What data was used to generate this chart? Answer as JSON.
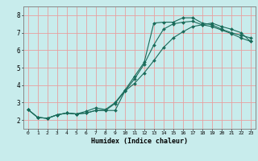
{
  "title": "",
  "xlabel": "Humidex (Indice chaleur)",
  "ylabel": "",
  "bg_color": "#c8ecec",
  "line_color": "#1a6b5a",
  "grid_color": "#e8a0a0",
  "xlim": [
    -0.5,
    23.5
  ],
  "ylim": [
    1.5,
    8.5
  ],
  "xticks": [
    0,
    1,
    2,
    3,
    4,
    5,
    6,
    7,
    8,
    9,
    10,
    11,
    12,
    13,
    14,
    15,
    16,
    17,
    18,
    19,
    20,
    21,
    22,
    23
  ],
  "yticks": [
    2,
    3,
    4,
    5,
    6,
    7,
    8
  ],
  "curve1_x": [
    0,
    1,
    2,
    3,
    4,
    5,
    6,
    7,
    8,
    9,
    10,
    11,
    12,
    13,
    14,
    15,
    16,
    17,
    18,
    19,
    20,
    21,
    22,
    23
  ],
  "curve1_y": [
    2.6,
    2.15,
    2.1,
    2.3,
    2.4,
    2.35,
    2.5,
    2.7,
    2.6,
    3.0,
    3.7,
    4.5,
    5.3,
    7.55,
    7.6,
    7.6,
    7.85,
    7.85,
    7.55,
    7.45,
    7.2,
    7.0,
    6.85,
    6.7
  ],
  "curve2_x": [
    0,
    1,
    2,
    3,
    4,
    5,
    6,
    7,
    8,
    9,
    10,
    11,
    12,
    13,
    14,
    15,
    16,
    17,
    18,
    19,
    20,
    21,
    22,
    23
  ],
  "curve2_y": [
    2.6,
    2.15,
    2.1,
    2.3,
    2.4,
    2.35,
    2.4,
    2.55,
    2.55,
    2.55,
    3.65,
    4.35,
    5.2,
    6.3,
    7.2,
    7.5,
    7.6,
    7.65,
    7.45,
    7.35,
    7.15,
    6.95,
    6.7,
    6.5
  ],
  "curve3_x": [
    0,
    1,
    2,
    3,
    4,
    5,
    6,
    7,
    8,
    9,
    10,
    11,
    12,
    13,
    14,
    15,
    16,
    17,
    18,
    19,
    20,
    21,
    22,
    23
  ],
  "curve3_y": [
    2.6,
    2.15,
    2.1,
    2.3,
    2.4,
    2.35,
    2.4,
    2.55,
    2.55,
    2.95,
    3.65,
    4.1,
    4.7,
    5.4,
    6.15,
    6.7,
    7.05,
    7.35,
    7.45,
    7.55,
    7.35,
    7.2,
    7.0,
    6.5
  ]
}
